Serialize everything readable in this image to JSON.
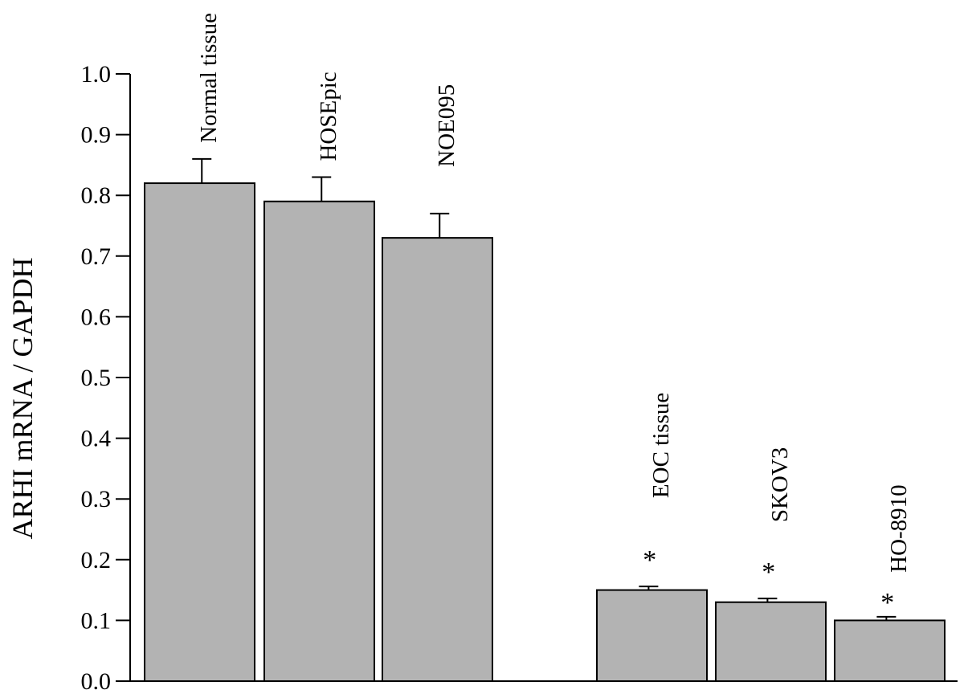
{
  "chart_data": {
    "type": "bar",
    "title": "",
    "xlabel": "",
    "ylabel": "ARHI mRNA / GAPDH",
    "ylim": [
      0,
      1.0
    ],
    "yticks": [
      "0.0",
      "0.1",
      "0.2",
      "0.3",
      "0.4",
      "0.5",
      "0.6",
      "0.7",
      "0.8",
      "0.9",
      "1.0"
    ],
    "grid": false,
    "legend": "none",
    "bar_color": "#b3b3b3",
    "categories": [
      "Normal tissue",
      "HOSEpic",
      "NOE095",
      "EOC tissue",
      "SKOV3",
      "HO-8910"
    ],
    "values": [
      0.82,
      0.79,
      0.73,
      0.15,
      0.13,
      0.1
    ],
    "error": [
      0.04,
      0.04,
      0.04,
      0.006,
      0.006,
      0.006
    ],
    "significance": [
      "",
      "",
      "",
      "*",
      "*",
      "*"
    ]
  }
}
